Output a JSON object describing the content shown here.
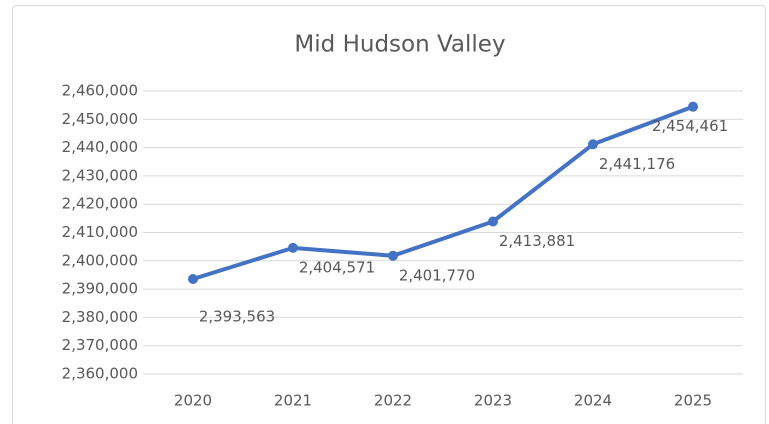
{
  "chart_data": {
    "type": "line",
    "title": "Mid Hudson Valley",
    "categories": [
      "2020",
      "2021",
      "2022",
      "2023",
      "2024",
      "2025"
    ],
    "series": [
      {
        "name": "Mid Hudson Valley",
        "color": "#4472c4",
        "values": [
          2393563,
          2404571,
          2401770,
          2413881,
          2441176,
          2454461
        ],
        "value_labels": [
          "2,393,563",
          "2,404,571",
          "2,401,770",
          "2,413,881",
          "2,441,176",
          "2,454,461"
        ]
      }
    ],
    "ylim": [
      2360000,
      2460000
    ],
    "yticks": [
      {
        "value": 2360000,
        "label": "2,360,000"
      },
      {
        "value": 2370000,
        "label": "2,370,000"
      },
      {
        "value": 2380000,
        "label": "2,380,000"
      },
      {
        "value": 2390000,
        "label": "2,390,000"
      },
      {
        "value": 2400000,
        "label": "2,400,000"
      },
      {
        "value": 2410000,
        "label": "2,410,000"
      },
      {
        "value": 2420000,
        "label": "2,420,000"
      },
      {
        "value": 2430000,
        "label": "2,430,000"
      },
      {
        "value": 2440000,
        "label": "2,440,000"
      },
      {
        "value": 2450000,
        "label": "2,450,000"
      },
      {
        "value": 2460000,
        "label": "2,460,000"
      }
    ],
    "grid": true
  }
}
